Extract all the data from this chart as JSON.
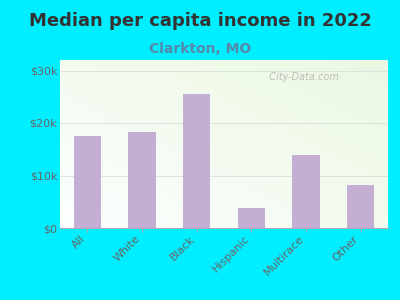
{
  "title": "Median per capita income in 2022",
  "subtitle": "Clarkton, MO",
  "categories": [
    "All",
    "White",
    "Black",
    "Hispanic",
    "Multirace",
    "Other"
  ],
  "values": [
    17500,
    18200,
    25500,
    3800,
    14000,
    8200
  ],
  "bar_color": "#c4aed4",
  "background_outer": "#00eeff",
  "title_color": "#333333",
  "subtitle_color": "#5588aa",
  "tick_label_color": "#666666",
  "axis_label_color": "#555555",
  "ylim": [
    0,
    32000
  ],
  "yticks": [
    0,
    10000,
    20000,
    30000
  ],
  "watermark": "  City-Data.com",
  "title_fontsize": 13,
  "subtitle_fontsize": 10,
  "tick_fontsize": 8
}
